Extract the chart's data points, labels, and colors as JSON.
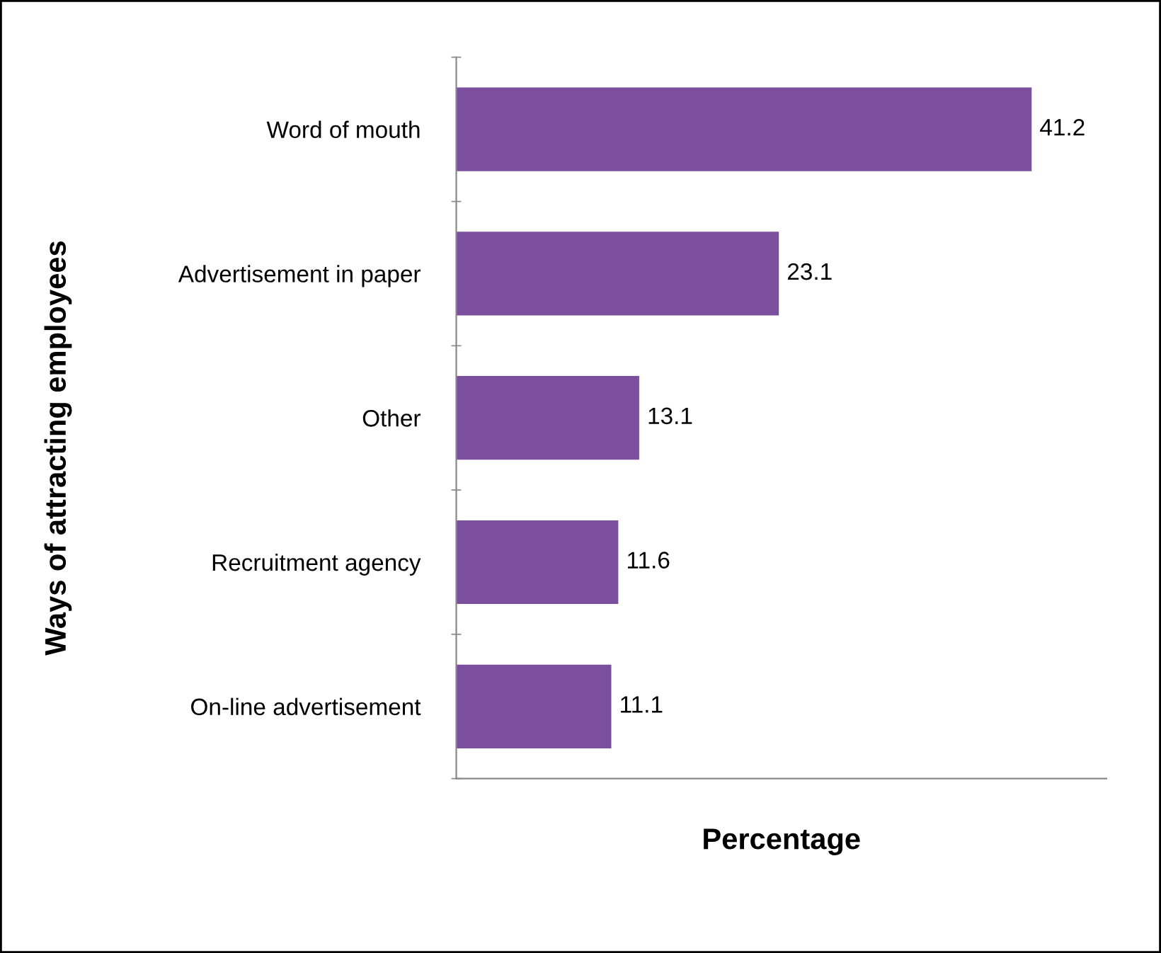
{
  "chart_data": {
    "type": "bar",
    "orientation": "horizontal",
    "xlabel": "Percentage",
    "ylabel": "Ways of attracting employees",
    "categories": [
      "Word of mouth",
      "Advertisement in paper",
      "Other",
      "Recruitment agency",
      "On-line advertisement"
    ],
    "values": [
      41.2,
      23.1,
      13.1,
      11.6,
      11.1
    ],
    "color": "#7b4f9d",
    "data_labels": true,
    "tick_labels": "y",
    "grid": false,
    "legend": false
  }
}
